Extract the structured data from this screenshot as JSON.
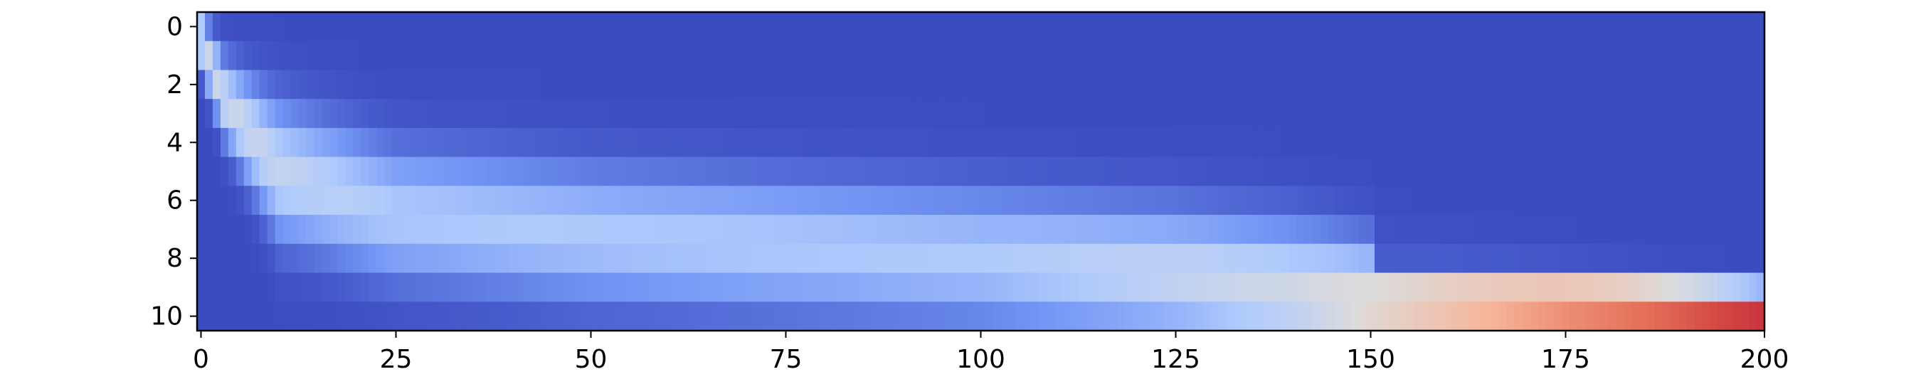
{
  "chart_data": {
    "type": "heatmap",
    "title": "",
    "xlabel": "",
    "ylabel": "",
    "colormap": "coolwarm",
    "colormap_stops": [
      "#3b4cc0",
      "#7396f5",
      "#b0cbfc",
      "#dddcdc",
      "#f6b69a",
      "#e46e56",
      "#b40426"
    ],
    "xlim": [
      0,
      200
    ],
    "ylim": [
      10,
      0
    ],
    "y_axis_inverted": true,
    "grid": false,
    "colorbar": false,
    "x_ticks": [
      0,
      25,
      50,
      75,
      100,
      125,
      150,
      175,
      200
    ],
    "y_ticks": [
      0,
      2,
      4,
      6,
      8,
      10
    ],
    "x_tick_labels": [
      "0",
      "25",
      "50",
      "75",
      "100",
      "125",
      "150",
      "175",
      "200"
    ],
    "y_tick_labels": [
      "0",
      "2",
      "4",
      "6",
      "8",
      "10"
    ],
    "grid_size": {
      "columns": 201,
      "rows": 11
    },
    "value_range": [
      0,
      1
    ],
    "ridge": {
      "description_points": [
        {
          "x": 0,
          "y": 0.5
        },
        {
          "x": 3,
          "y": 2.5
        },
        {
          "x": 10,
          "y": 5.0
        },
        {
          "x": 25,
          "y": 6.5
        },
        {
          "x": 50,
          "y": 7.2
        },
        {
          "x": 75,
          "y": 7.6
        },
        {
          "x": 100,
          "y": 8.0
        },
        {
          "x": 125,
          "y": 8.6
        },
        {
          "x": 140,
          "y": 9.2
        },
        {
          "x": 150,
          "y": 9.6
        },
        {
          "x": 200,
          "y": 9.8
        }
      ],
      "peak_value": [
        {
          "x": 0,
          "value": 0.45
        },
        {
          "x": 25,
          "value": 0.33
        },
        {
          "x": 100,
          "value": 0.33
        },
        {
          "x": 140,
          "value": 0.45
        },
        {
          "x": 150,
          "value": 0.55
        },
        {
          "x": 175,
          "value": 0.8
        },
        {
          "x": 200,
          "value": 1.0
        }
      ]
    }
  }
}
